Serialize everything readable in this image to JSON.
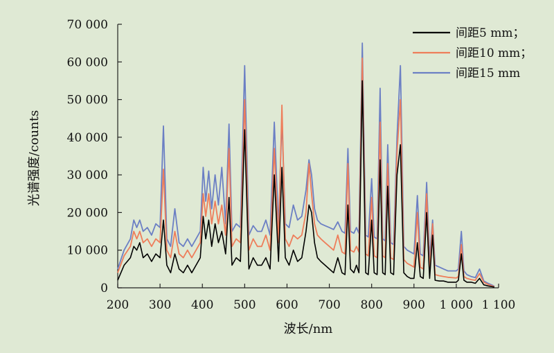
{
  "chart_data": {
    "type": "line",
    "xlabel": "波长/nm",
    "ylabel": "光谱强度/counts",
    "xlim": [
      200,
      1100
    ],
    "ylim": [
      0,
      70000
    ],
    "x_ticks": [
      200,
      300,
      400,
      500,
      600,
      700,
      800,
      900,
      1000,
      1100
    ],
    "x_tick_labels": [
      "200",
      "300",
      "400",
      "500",
      "600",
      "700",
      "800",
      "900",
      "1 000",
      "1 100"
    ],
    "y_ticks": [
      0,
      10000,
      20000,
      30000,
      40000,
      50000,
      60000,
      70000
    ],
    "y_tick_labels": [
      "0",
      "10 000",
      "20 000",
      "30 000",
      "40 000",
      "50 000",
      "60 000",
      "70 000"
    ],
    "grid": false,
    "legend_position": "top-right",
    "series": [
      {
        "name": "间距5 mm；",
        "color": "#000000",
        "x": [
          200,
          215,
          230,
          238,
          245,
          252,
          260,
          270,
          280,
          290,
          300,
          308,
          316,
          325,
          335,
          345,
          355,
          365,
          375,
          385,
          395,
          402,
          408,
          415,
          422,
          430,
          438,
          446,
          455,
          463,
          470,
          480,
          490,
          500,
          510,
          520,
          530,
          540,
          550,
          560,
          570,
          580,
          588,
          596,
          605,
          615,
          625,
          635,
          645,
          652,
          658,
          665,
          672,
          680,
          690,
          700,
          710,
          720,
          730,
          737,
          744,
          750,
          758,
          764,
          770,
          778,
          786,
          792,
          800,
          806,
          813,
          820,
          826,
          832,
          838,
          845,
          852,
          860,
          868,
          876,
          884,
          892,
          900,
          908,
          915,
          922,
          930,
          937,
          944,
          950,
          960,
          970,
          980,
          990,
          1000,
          1005,
          1012,
          1018,
          1025,
          1035,
          1045,
          1055,
          1065,
          1075,
          1085,
          1090
        ],
        "y": [
          2000,
          6000,
          8000,
          11000,
          10000,
          12000,
          8000,
          9000,
          7000,
          9000,
          8000,
          18000,
          6000,
          4000,
          9000,
          5000,
          4000,
          6000,
          4000,
          6000,
          8000,
          19000,
          13000,
          18000,
          11000,
          17000,
          12000,
          15000,
          9000,
          24000,
          6000,
          8000,
          7000,
          42000,
          5000,
          8000,
          6000,
          6000,
          8000,
          5000,
          30000,
          7000,
          32000,
          8000,
          6000,
          10000,
          7000,
          8000,
          15000,
          22000,
          20000,
          12000,
          8000,
          7000,
          6000,
          5000,
          4000,
          8000,
          4000,
          3500,
          22000,
          5000,
          4000,
          6000,
          4000,
          55000,
          4000,
          3500,
          18000,
          4000,
          3500,
          34000,
          4000,
          3500,
          27000,
          4000,
          3500,
          30000,
          38000,
          4000,
          3000,
          2500,
          2500,
          12000,
          3000,
          2500,
          20000,
          2500,
          14000,
          2000,
          1800,
          1800,
          1500,
          1500,
          1500,
          2000,
          9000,
          2000,
          1500,
          1500,
          1200,
          2500,
          800,
          500,
          300,
          200
        ]
      },
      {
        "name": "间距10 mm；",
        "color": "#ee7d5a",
        "x": [
          200,
          215,
          230,
          238,
          245,
          252,
          260,
          270,
          280,
          290,
          300,
          308,
          316,
          325,
          335,
          345,
          355,
          365,
          375,
          385,
          395,
          402,
          408,
          415,
          422,
          430,
          438,
          446,
          455,
          463,
          470,
          480,
          490,
          500,
          510,
          520,
          530,
          540,
          550,
          560,
          570,
          580,
          588,
          596,
          605,
          615,
          625,
          635,
          645,
          652,
          658,
          665,
          672,
          680,
          690,
          700,
          710,
          720,
          730,
          737,
          744,
          750,
          758,
          764,
          770,
          778,
          786,
          792,
          800,
          806,
          813,
          820,
          826,
          832,
          838,
          845,
          852,
          860,
          868,
          876,
          884,
          892,
          900,
          908,
          915,
          922,
          930,
          937,
          944,
          950,
          960,
          970,
          980,
          990,
          1000,
          1005,
          1012,
          1018,
          1025,
          1035,
          1045,
          1055,
          1065,
          1075,
          1085,
          1090
        ],
        "y": [
          4000,
          8500,
          11000,
          15000,
          13000,
          15000,
          12000,
          13000,
          11000,
          13000,
          12000,
          31500,
          10000,
          8000,
          15000,
          9000,
          8000,
          10000,
          8000,
          10000,
          12000,
          25000,
          19000,
          25000,
          17000,
          23000,
          17000,
          22000,
          14000,
          37000,
          11000,
          13000,
          12000,
          50000,
          10000,
          13000,
          11000,
          11000,
          14000,
          10000,
          37000,
          12000,
          48500,
          13000,
          11000,
          14000,
          13000,
          14000,
          20000,
          33000,
          25000,
          17000,
          14000,
          13000,
          12000,
          11000,
          10000,
          14000,
          9500,
          9000,
          33000,
          10000,
          9500,
          11000,
          9500,
          61000,
          9000,
          8500,
          24000,
          8500,
          8000,
          44000,
          8500,
          8000,
          33000,
          8000,
          7500,
          36000,
          50000,
          7500,
          6500,
          6000,
          5500,
          20000,
          5500,
          5000,
          25000,
          4500,
          17000,
          3500,
          3200,
          3000,
          2800,
          2700,
          2600,
          3000,
          11500,
          3000,
          2500,
          2200,
          2000,
          3800,
          1500,
          900,
          500,
          300
        ]
      },
      {
        "name": "间距15 mm",
        "color": "#6b7fc4",
        "x": [
          200,
          215,
          230,
          238,
          245,
          252,
          260,
          270,
          280,
          290,
          300,
          308,
          316,
          325,
          335,
          345,
          355,
          365,
          375,
          385,
          395,
          402,
          408,
          415,
          422,
          430,
          438,
          446,
          455,
          463,
          470,
          480,
          490,
          500,
          510,
          520,
          530,
          540,
          550,
          560,
          570,
          580,
          588,
          596,
          605,
          615,
          625,
          635,
          645,
          652,
          658,
          665,
          672,
          680,
          690,
          700,
          710,
          720,
          730,
          737,
          744,
          750,
          758,
          764,
          770,
          778,
          786,
          792,
          800,
          806,
          813,
          820,
          826,
          832,
          838,
          845,
          852,
          860,
          868,
          876,
          884,
          892,
          900,
          908,
          915,
          922,
          930,
          937,
          944,
          950,
          960,
          970,
          980,
          990,
          1000,
          1005,
          1012,
          1018,
          1025,
          1035,
          1045,
          1055,
          1065,
          1075,
          1085,
          1090
        ],
        "y": [
          5000,
          10000,
          13000,
          18000,
          16000,
          18000,
          15000,
          16000,
          14000,
          17000,
          16000,
          43000,
          13000,
          11000,
          21000,
          12000,
          11000,
          13000,
          11000,
          13000,
          15000,
          32000,
          23000,
          31000,
          21000,
          30000,
          22000,
          32000,
          17000,
          43500,
          15000,
          17000,
          16000,
          59000,
          14000,
          16500,
          15000,
          15000,
          18000,
          14000,
          44000,
          16000,
          45000,
          17000,
          16000,
          22000,
          18000,
          19000,
          26000,
          34000,
          30000,
          21000,
          18000,
          17000,
          16500,
          16000,
          15500,
          17500,
          15000,
          14500,
          37000,
          15000,
          14500,
          16000,
          14500,
          65000,
          14000,
          13500,
          29000,
          13500,
          13000,
          53000,
          13000,
          12500,
          38000,
          12000,
          11500,
          40000,
          59000,
          11000,
          10000,
          9500,
          9000,
          24500,
          9000,
          8500,
          28000,
          8000,
          18000,
          6000,
          5500,
          5000,
          4500,
          4500,
          4500,
          5000,
          15000,
          4500,
          3500,
          3000,
          2700,
          5000,
          1800,
          1200,
          700,
          400
        ]
      }
    ]
  }
}
